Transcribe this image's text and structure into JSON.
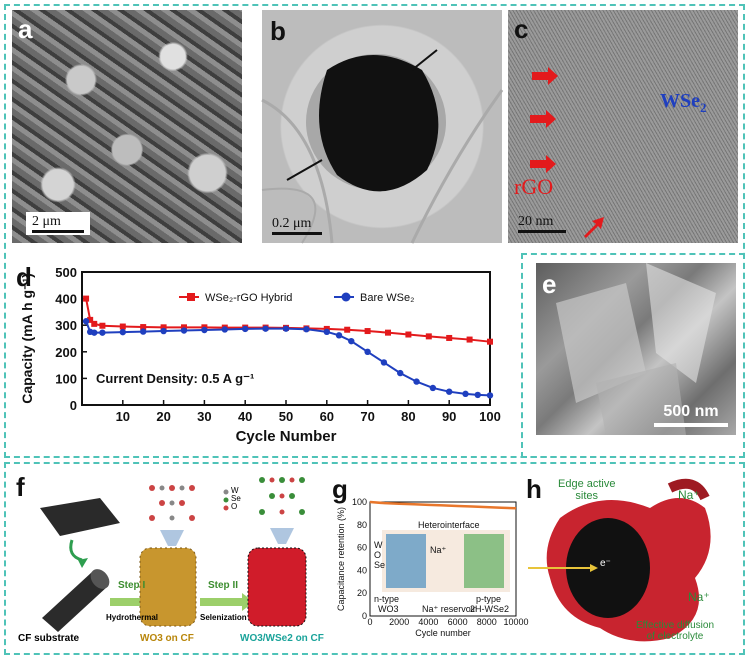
{
  "panels": {
    "a": {
      "label": "a",
      "scalebar": "2 μm"
    },
    "b": {
      "label": "b",
      "scalebar": "0.2 μm"
    },
    "c": {
      "label": "c",
      "scalebar": "20 nm",
      "text_rgo": "rGO",
      "text_wse2": "WSe",
      "text_wse2_sub": "2"
    },
    "d": {
      "label": "d"
    },
    "e": {
      "label": "e",
      "scalebar": "500 nm"
    },
    "f": {
      "label": "f",
      "step1": "Step I",
      "step1_sub": "Hydrothermal",
      "step2": "Step II",
      "step2_sub": "Selenization",
      "cf_substrate": "CF substrate",
      "wo3_cf": "WO3 on CF",
      "wo3_wse2_cf": "WO3/WSe2 on CF",
      "legend_w": "W",
      "legend_se": "Se",
      "legend_o": "O"
    },
    "g": {
      "label": "g",
      "heterointerface": "Heterointerface",
      "na_plus": "Na⁺",
      "w": "W",
      "o": "O",
      "se": "Se",
      "ntype": "n-type",
      "wo3": "WO3",
      "reservoir": "Na⁺ reservoir",
      "ptype": "p-type",
      "wse2": "2H-WSe2",
      "ylabel": "Capacitance retention (%)",
      "xlabel": "Cycle number"
    },
    "h": {
      "label": "h",
      "edge_sites": "Edge active",
      "edge_sites2": "sites",
      "na1": "Na⁺",
      "na2": "Na⁺",
      "diffusion1": "Effective diffusion",
      "diffusion2": "of electrolyte",
      "electron": "e⁻"
    }
  },
  "chart_data": [
    {
      "type": "line",
      "panel": "d",
      "xlabel": "Cycle Number",
      "ylabel": "Capacity (mA h g⁻¹)",
      "xlim": [
        0,
        100
      ],
      "ylim": [
        0,
        500
      ],
      "xticks": [
        10,
        20,
        30,
        40,
        50,
        60,
        70,
        80,
        90,
        100
      ],
      "yticks": [
        0,
        100,
        200,
        300,
        400,
        500
      ],
      "annotation": "Current Density: 0.5 A g⁻¹",
      "legend_position": "top",
      "series": [
        {
          "name": "WSe₂-rGO Hybrid",
          "color": "#e31a1c",
          "marker": "square",
          "x": [
            1,
            2,
            3,
            5,
            10,
            15,
            20,
            25,
            30,
            35,
            40,
            45,
            50,
            55,
            60,
            65,
            70,
            75,
            80,
            85,
            90,
            95,
            100
          ],
          "y": [
            400,
            320,
            305,
            298,
            295,
            293,
            292,
            292,
            292,
            291,
            291,
            291,
            290,
            288,
            286,
            283,
            278,
            272,
            265,
            258,
            252,
            246,
            238
          ]
        },
        {
          "name": "Bare WSe₂",
          "color": "#1f3fbf",
          "marker": "circle",
          "x": [
            1,
            2,
            3,
            5,
            10,
            15,
            20,
            25,
            30,
            35,
            40,
            45,
            50,
            55,
            60,
            63,
            66,
            70,
            74,
            78,
            82,
            86,
            90,
            94,
            97,
            100
          ],
          "y": [
            315,
            275,
            272,
            272,
            274,
            276,
            278,
            280,
            282,
            284,
            286,
            287,
            287,
            285,
            275,
            262,
            240,
            200,
            160,
            120,
            88,
            64,
            50,
            42,
            38,
            36
          ]
        }
      ]
    },
    {
      "type": "line",
      "panel": "g",
      "xlabel": "Cycle number",
      "ylabel": "Capacitance retention (%)",
      "xlim": [
        0,
        10000
      ],
      "ylim": [
        0,
        100
      ],
      "xticks": [
        0,
        2000,
        4000,
        6000,
        8000,
        10000
      ],
      "yticks": [
        0,
        20,
        40,
        60,
        80,
        100
      ],
      "series": [
        {
          "color": "#e8762b",
          "x": [
            0,
            1000,
            2000,
            3000,
            4000,
            5000,
            6000,
            7000,
            8000,
            9000,
            10000
          ],
          "y": [
            100,
            99,
            98.5,
            98,
            97.5,
            97,
            96.5,
            96,
            95.5,
            95,
            94.5
          ]
        }
      ]
    }
  ]
}
